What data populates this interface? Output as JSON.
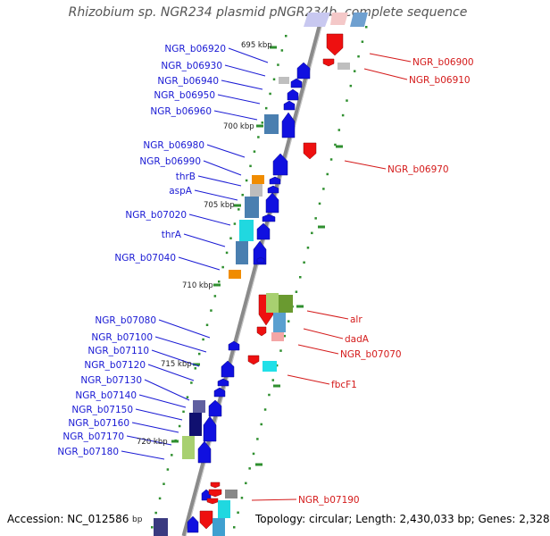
{
  "title": "Rhizobium sp. NGR234 plasmid pNGR234b, complete sequence",
  "footer": {
    "accession": "Accession: NC_012586",
    "accession_unit": "bp",
    "summary": "Topology: circular; Length: 2,430,033 bp; Genes: 2,328"
  },
  "colors": {
    "backbone": "#888888",
    "left_labels": "#1a1ad4",
    "right_labels": "#d41a1a",
    "tick": "#2f8f2f",
    "gene_forward": "#1010e0",
    "gene_reverse": "#ee1010"
  },
  "scale_labels": [
    "695 kbp",
    "700 kbp",
    "705 kbp",
    "710 kbp",
    "715 kbp",
    "720 kbp"
  ],
  "left_genes": [
    "NGR_b06920",
    "NGR_b06930",
    "NGR_b06940",
    "NGR_b06950",
    "NGR_b06960",
    "NGR_b06980",
    "NGR_b06990",
    "thrB",
    "aspA",
    "NGR_b07020",
    "thrA",
    "NGR_b07040",
    "NGR_b07080",
    "NGR_b07100",
    "NGR_b07110",
    "NGR_b07120",
    "NGR_b07130",
    "NGR_b07140",
    "NGR_b07150",
    "NGR_b07160",
    "NGR_b07170",
    "NGR_b07180"
  ],
  "right_genes": [
    "NGR_b06900",
    "NGR_b06910",
    "NGR_b06970",
    "alr",
    "dadA",
    "NGR_b07070",
    "fbcF1",
    "NGR_b07190"
  ]
}
